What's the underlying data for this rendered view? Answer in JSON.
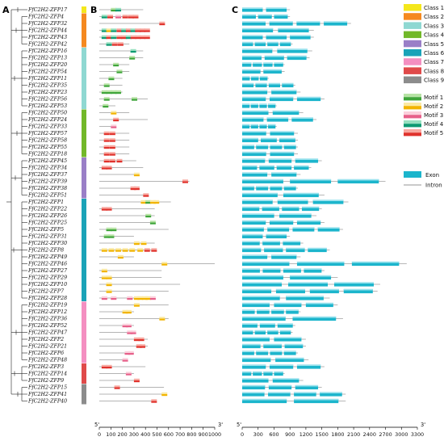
{
  "panels": {
    "a": "A",
    "b": "B",
    "c": "C"
  },
  "genes": [
    {
      "name": "FfC2H2-ZFP17",
      "cls": 1,
      "protein_len": 380,
      "motifs": [
        [
          100,
          1
        ],
        [
          140,
          4
        ]
      ],
      "gene_len": 900
    },
    {
      "name": "FfC2H2-ZFP4",
      "cls": 2,
      "protein_len": 300,
      "motifs": [
        [
          20,
          4
        ],
        [
          70,
          5
        ],
        [
          140,
          3
        ],
        [
          200,
          7
        ],
        [
          250,
          8
        ],
        [
          290,
          7
        ]
      ],
      "gene_len": 900
    },
    {
      "name": "FfC2H2-ZFP32",
      "cls": 2,
      "protein_len": 560,
      "motifs": [
        [
          520,
          8
        ]
      ],
      "gene_len": 2050
    },
    {
      "name": "FfC2H2-ZFP44",
      "cls": 2,
      "protein_len": 420,
      "motifs": [
        [
          20,
          4
        ],
        [
          60,
          2
        ],
        [
          100,
          4
        ],
        [
          150,
          5
        ],
        [
          190,
          4
        ],
        [
          230,
          7
        ],
        [
          270,
          4
        ],
        [
          310,
          8
        ],
        [
          350,
          7
        ],
        [
          390,
          5
        ]
      ],
      "gene_len": 1350
    },
    {
      "name": "FfC2H2-ZFP43",
      "cls": 2,
      "protein_len": 420,
      "motifs": [
        [
          20,
          4
        ],
        [
          60,
          5
        ],
        [
          100,
          4
        ],
        [
          150,
          5
        ],
        [
          190,
          7
        ],
        [
          230,
          4
        ],
        [
          270,
          8
        ],
        [
          310,
          7
        ],
        [
          350,
          5
        ],
        [
          390,
          8
        ]
      ],
      "gene_len": 1350
    },
    {
      "name": "FfC2H2-ZFP42",
      "cls": 2,
      "protein_len": 260,
      "motifs": [
        [
          60,
          4
        ],
        [
          110,
          5
        ],
        [
          160,
          7
        ]
      ],
      "gene_len": 950
    },
    {
      "name": "FfC2H2-ZFP16",
      "cls": 3,
      "protein_len": 380,
      "motifs": [
        [
          270,
          4
        ]
      ],
      "gene_len": 1320
    },
    {
      "name": "FfC2H2-ZFP13",
      "cls": 3,
      "protein_len": 380,
      "motifs": [
        [
          260,
          1
        ]
      ],
      "gene_len": 1270
    },
    {
      "name": "FfC2H2-ZFP20",
      "cls": 3,
      "protein_len": 260,
      "motifs": [
        [
          120,
          1
        ]
      ],
      "gene_len": 800
    },
    {
      "name": "FfC2H2-ZFP54",
      "cls": 3,
      "protein_len": 260,
      "motifs": [
        [
          150,
          1
        ]
      ],
      "gene_len": 800
    },
    {
      "name": "FfC2H2-ZFP11",
      "cls": 3,
      "protein_len": 200,
      "motifs": [
        [
          80,
          1
        ]
      ],
      "gene_len": 500
    },
    {
      "name": "FfC2H2-ZFP35",
      "cls": 3,
      "protein_len": 200,
      "motifs": [
        [
          40,
          1
        ]
      ],
      "gene_len": 1000
    },
    {
      "name": "FfC2H2-ZFP23",
      "cls": 3,
      "protein_len": 200,
      "motifs": [
        [
          20,
          1
        ],
        [
          60,
          1
        ],
        [
          100,
          1
        ],
        [
          140,
          1
        ]
      ],
      "gene_len": 1100
    },
    {
      "name": "FfC2H2-ZFP56",
      "cls": 3,
      "protein_len": 420,
      "motifs": [
        [
          40,
          1
        ],
        [
          280,
          1
        ]
      ],
      "gene_len": 1550
    },
    {
      "name": "FfC2H2-ZFP53",
      "cls": 3,
      "protein_len": 140,
      "motifs": [
        [
          30,
          1
        ]
      ],
      "gene_len": 650
    },
    {
      "name": "FfC2H2-ZFP50",
      "cls": 4,
      "protein_len": 260,
      "motifs": [
        [
          100,
          2
        ]
      ],
      "gene_len": 1150
    },
    {
      "name": "FfC2H2-ZFP24",
      "cls": 4,
      "protein_len": 420,
      "motifs": [
        [
          120,
          8
        ]
      ],
      "gene_len": 1400
    },
    {
      "name": "FfC2H2-ZFP33",
      "cls": 4,
      "protein_len": 140,
      "motifs": [
        [
          100,
          3
        ]
      ],
      "gene_len": 650
    },
    {
      "name": "FfC2H2-ZFP57",
      "cls": 4,
      "protein_len": 260,
      "motifs": [
        [
          40,
          7
        ],
        [
          90,
          7
        ]
      ],
      "gene_len": 1050
    },
    {
      "name": "FfC2H2-ZFP58",
      "cls": 4,
      "protein_len": 260,
      "motifs": [
        [
          40,
          7
        ],
        [
          90,
          7
        ]
      ],
      "gene_len": 1050
    },
    {
      "name": "FfC2H2-ZFP55",
      "cls": 4,
      "protein_len": 260,
      "motifs": [
        [
          40,
          7
        ],
        [
          90,
          7
        ]
      ],
      "gene_len": 1050
    },
    {
      "name": "FfC2H2-ZFP18",
      "cls": 4,
      "protein_len": 260,
      "motifs": [
        [
          40,
          7
        ],
        [
          90,
          7
        ]
      ],
      "gene_len": 1050
    },
    {
      "name": "FfC2H2-ZFP45",
      "cls": 5,
      "protein_len": 320,
      "motifs": [
        [
          40,
          7
        ],
        [
          90,
          7
        ],
        [
          150,
          7
        ]
      ],
      "gene_len": 1500
    },
    {
      "name": "FfC2H2-ZFP34",
      "cls": 5,
      "protein_len": 380,
      "motifs": [
        [
          20,
          7
        ],
        [
          60,
          7
        ]
      ],
      "gene_len": 1300
    },
    {
      "name": "FfC2H2-ZFP37",
      "cls": 5,
      "protein_len": 330,
      "motifs": [
        [
          300,
          2
        ]
      ],
      "gene_len": 1100
    },
    {
      "name": "FfC2H2-ZFP39",
      "cls": 5,
      "protein_len": 780,
      "motifs": [
        [
          720,
          7
        ]
      ],
      "gene_len": 2700
    },
    {
      "name": "FfC2H2-ZFP38",
      "cls": 5,
      "protein_len": 330,
      "motifs": [
        [
          270,
          7
        ],
        [
          300,
          7
        ]
      ],
      "gene_len": 1050
    },
    {
      "name": "FfC2H2-ZFP51",
      "cls": 5,
      "protein_len": 420,
      "motifs": [
        [
          380,
          7
        ]
      ],
      "gene_len": 1550
    },
    {
      "name": "FfC2H2-ZFP1",
      "cls": 6,
      "protein_len": 620,
      "motifs": [
        [
          360,
          2
        ],
        [
          400,
          1
        ],
        [
          440,
          2
        ],
        [
          470,
          2
        ]
      ],
      "gene_len": 2000
    },
    {
      "name": "FfC2H2-ZFP22",
      "cls": 6,
      "protein_len": 480,
      "motifs": [
        [
          20,
          7
        ],
        [
          60,
          7
        ]
      ],
      "gene_len": 1500
    },
    {
      "name": "FfC2H2-ZFP26",
      "cls": 6,
      "protein_len": 480,
      "motifs": [
        [
          400,
          1
        ]
      ],
      "gene_len": 1400
    },
    {
      "name": "FfC2H2-ZFP25",
      "cls": 6,
      "protein_len": 480,
      "motifs": [
        [
          440,
          1
        ]
      ],
      "gene_len": 1550
    },
    {
      "name": "FfC2H2-ZFP5",
      "cls": 6,
      "protein_len": 600,
      "motifs": [
        [
          60,
          1
        ],
        [
          100,
          1
        ]
      ],
      "gene_len": 1900
    },
    {
      "name": "FfC2H2-ZFP31",
      "cls": 6,
      "protein_len": 300,
      "motifs": [
        [
          40,
          1
        ],
        [
          80,
          1
        ]
      ],
      "gene_len": 900
    },
    {
      "name": "FfC2H2-ZFP30",
      "cls": 6,
      "protein_len": 480,
      "motifs": [
        [
          300,
          2
        ],
        [
          360,
          2
        ]
      ],
      "gene_len": 1150
    },
    {
      "name": "FfC2H2-ZFP8",
      "cls": 6,
      "protein_len": 480,
      "motifs": [
        [
          20,
          2
        ],
        [
          80,
          2
        ],
        [
          140,
          2
        ],
        [
          200,
          2
        ],
        [
          260,
          2
        ],
        [
          330,
          2
        ],
        [
          390,
          8
        ],
        [
          450,
          7
        ]
      ],
      "gene_len": 1650
    },
    {
      "name": "FfC2H2-ZFP49",
      "cls": 6,
      "protein_len": 300,
      "motifs": [
        [
          160,
          2
        ]
      ],
      "gene_len": 1100
    },
    {
      "name": "FfC2H2-ZFP46",
      "cls": 6,
      "protein_len": 1000,
      "motifs": [
        [
          540,
          2
        ]
      ],
      "gene_len": 3100
    },
    {
      "name": "FfC2H2-ZFP27",
      "cls": 6,
      "protein_len": 540,
      "motifs": [
        [
          20,
          2
        ]
      ],
      "gene_len": 1550
    },
    {
      "name": "FfC2H2-ZFP29",
      "cls": 6,
      "protein_len": 540,
      "motifs": [
        [
          20,
          2
        ],
        [
          60,
          2
        ]
      ],
      "gene_len": 1800
    },
    {
      "name": "FfC2H2-ZFP10",
      "cls": 6,
      "protein_len": 700,
      "motifs": [
        [
          60,
          2
        ]
      ],
      "gene_len": 2600
    },
    {
      "name": "FfC2H2-ZFP7",
      "cls": 6,
      "protein_len": 600,
      "motifs": [
        [
          60,
          2
        ]
      ],
      "gene_len": 2550
    },
    {
      "name": "FfC2H2-ZFP28",
      "cls": 6,
      "protein_len": 480,
      "motifs": [
        [
          20,
          3
        ],
        [
          100,
          3
        ],
        [
          240,
          3
        ],
        [
          300,
          2
        ],
        [
          330,
          2
        ],
        [
          370,
          2
        ],
        [
          400,
          2
        ],
        [
          440,
          3
        ]
      ],
      "gene_len": 1650
    },
    {
      "name": "FfC2H2-ZFP19",
      "cls": 7,
      "protein_len": 600,
      "motifs": [
        [
          300,
          2
        ]
      ],
      "gene_len": 1800
    },
    {
      "name": "FfC2H2-ZFP12",
      "cls": 7,
      "protein_len": 300,
      "motifs": [
        [
          200,
          2
        ],
        [
          230,
          2
        ]
      ],
      "gene_len": 1100
    },
    {
      "name": "FfC2H2-ZFP36",
      "cls": 7,
      "protein_len": 600,
      "motifs": [
        [
          520,
          2
        ]
      ],
      "gene_len": 1900
    },
    {
      "name": "FfC2H2-ZFP52",
      "cls": 7,
      "protein_len": 300,
      "motifs": [
        [
          200,
          3
        ],
        [
          230,
          3
        ]
      ],
      "gene_len": 1000
    },
    {
      "name": "FfC2H2-ZFP47",
      "cls": 7,
      "protein_len": 300,
      "motifs": [
        [
          240,
          3
        ],
        [
          270,
          3
        ]
      ],
      "gene_len": 950
    },
    {
      "name": "FfC2H2-ZFP2",
      "cls": 7,
      "protein_len": 420,
      "motifs": [
        [
          300,
          7
        ],
        [
          340,
          7
        ]
      ],
      "gene_len": 1200
    },
    {
      "name": "FfC2H2-ZFP21",
      "cls": 7,
      "protein_len": 420,
      "motifs": [
        [
          320,
          7
        ],
        [
          350,
          7
        ]
      ],
      "gene_len": 1200
    },
    {
      "name": "FfC2H2-ZFP6",
      "cls": 7,
      "protein_len": 300,
      "motifs": [
        [
          220,
          3
        ],
        [
          250,
          3
        ]
      ],
      "gene_len": 1050
    },
    {
      "name": "FfC2H2-ZFP48",
      "cls": 7,
      "protein_len": 240,
      "motifs": [
        [
          200,
          3
        ]
      ],
      "gene_len": 1250
    },
    {
      "name": "FfC2H2-ZFP3",
      "cls": 8,
      "protein_len": 400,
      "motifs": [
        [
          20,
          7
        ],
        [
          60,
          7
        ]
      ],
      "gene_len": 1550
    },
    {
      "name": "FfC2H2-ZFP14",
      "cls": 8,
      "protein_len": 300,
      "motifs": [
        [
          230,
          3
        ]
      ],
      "gene_len": 800
    },
    {
      "name": "FfC2H2-ZFP9",
      "cls": 8,
      "protein_len": 330,
      "motifs": [
        [
          300,
          7
        ]
      ],
      "gene_len": 1150
    },
    {
      "name": "FfC2H2-ZFP15",
      "cls": 9,
      "protein_len": 560,
      "motifs": [
        [
          130,
          7
        ]
      ],
      "gene_len": 1500
    },
    {
      "name": "FfC2H2-ZFP41",
      "cls": 9,
      "protein_len": 560,
      "motifs": [
        [
          540,
          2
        ]
      ],
      "gene_len": 1950
    },
    {
      "name": "FfC2H2-ZFP40",
      "cls": 9,
      "protein_len": 480,
      "motifs": [
        [
          450,
          7
        ]
      ],
      "gene_len": 1950
    }
  ],
  "classes": [
    {
      "label": "Class 1",
      "color": "#f4e71c"
    },
    {
      "label": "Class 2",
      "color": "#f5891f"
    },
    {
      "label": "Class 3",
      "color": "#8fd8d2"
    },
    {
      "label": "Class 4",
      "color": "#72b829"
    },
    {
      "label": "Class 5",
      "color": "#9a7fc7"
    },
    {
      "label": "Class 6",
      "color": "#1aa3b8"
    },
    {
      "label": "Class 7",
      "color": "#f48fc1"
    },
    {
      "label": "Class 8",
      "color": "#e04a4a"
    },
    {
      "label": "Class 9",
      "color": "#8c8c8c"
    }
  ],
  "motifs": [
    {
      "label": "Motif 1",
      "c1": "#b7e3a5",
      "c2": "#3fa53a"
    },
    {
      "label": "Motif 2",
      "c1": "#fbe9a2",
      "c2": "#f2b400"
    },
    {
      "label": "Motif 3",
      "c1": "#fbd0dc",
      "c2": "#e7608a"
    },
    {
      "label": "Motif 4",
      "c1": "#98e0c0",
      "c2": "#0d9a72"
    },
    {
      "label": "Motif 5",
      "c1": "#f8a8a0",
      "c2": "#e0322c"
    }
  ],
  "structure_legend": {
    "exon": "Exon",
    "intron": "Intron",
    "exon_color": "#1cb5cc",
    "intron_color": "#707070"
  },
  "axis_b": {
    "ticks": [
      0,
      100,
      200,
      300,
      400,
      500,
      600,
      700,
      800,
      900,
      1000
    ],
    "max": 1000,
    "left": "5'",
    "right": "3'"
  },
  "axis_c": {
    "ticks": [
      0,
      300,
      600,
      900,
      1200,
      1500,
      1800,
      2100,
      2400,
      2700,
      3000,
      3300
    ],
    "max": 3300,
    "left": "5'",
    "right": "3'"
  }
}
